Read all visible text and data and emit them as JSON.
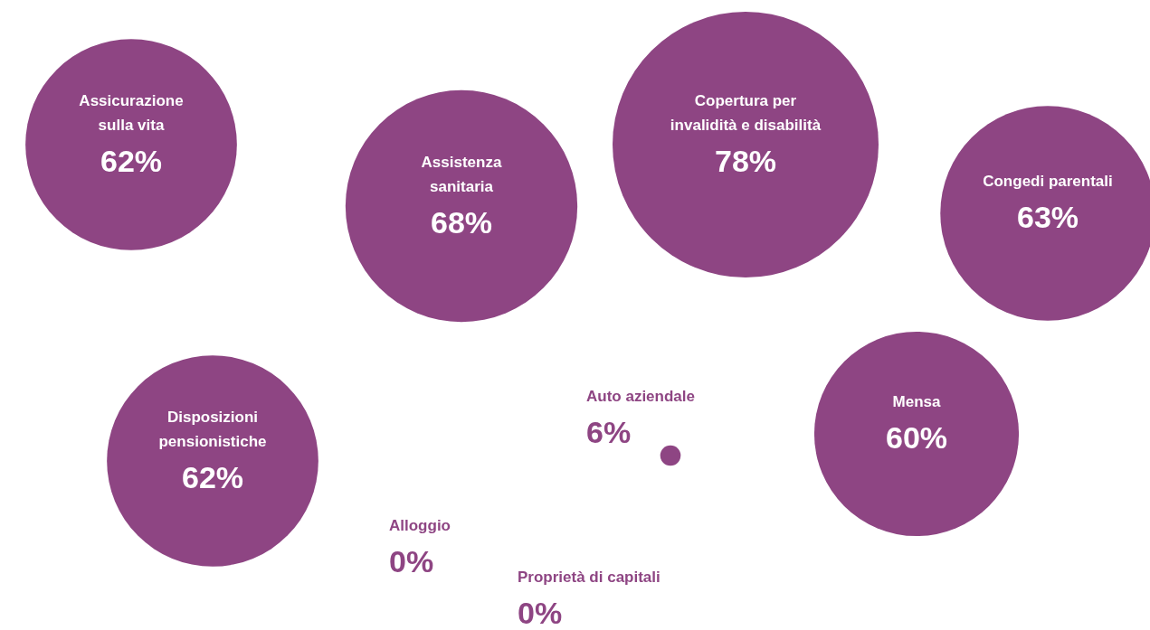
{
  "chart_data": {
    "type": "other",
    "categories": [
      "Assicurazione sulla vita",
      "Assistenza sanitaria",
      "Copertura per invalidità e disabilità",
      "Congedi parentali",
      "Disposizioni pensionistiche",
      "Auto aziendale",
      "Mensa",
      "Alloggio",
      "Proprietà di capitali"
    ],
    "values": [
      62,
      68,
      78,
      63,
      62,
      6,
      60,
      0,
      0
    ],
    "value_labels": [
      "62%",
      "68%",
      "78%",
      "63%",
      "62%",
      "6%",
      "60%",
      "0%",
      "0%"
    ],
    "color": "#8e4583"
  }
}
